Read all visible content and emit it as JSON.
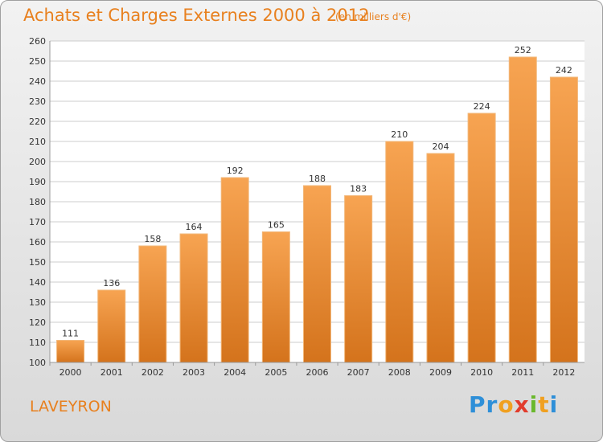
{
  "header": {
    "title": "Achats et Charges Externes 2000 à 2012",
    "subtitle": "(en milliers d'€)"
  },
  "footer": {
    "location": "LAVEYRON",
    "logo_parts": [
      "Pr",
      "o",
      "x",
      "i",
      "t",
      "i"
    ],
    "logo_colors": [
      "#2e8fd8",
      "#f0a020",
      "#e23c2c",
      "#6ab82c",
      "#f0a020",
      "#2e8fd8"
    ]
  },
  "colors": {
    "bar_top": "#f7a452",
    "bar_bottom": "#d4731c",
    "bar_edge": "#f2b779",
    "plot_bg": "#ffffff",
    "grid": "#cccccc",
    "title": "#e8801e"
  },
  "chart_data": {
    "type": "bar",
    "categories": [
      "2000",
      "2001",
      "2002",
      "2003",
      "2004",
      "2005",
      "2006",
      "2007",
      "2008",
      "2009",
      "2010",
      "2011",
      "2012"
    ],
    "values": [
      111,
      136,
      158,
      164,
      192,
      165,
      188,
      183,
      210,
      204,
      224,
      252,
      242
    ],
    "title": "Achats et Charges Externes 2000 à 2012",
    "subtitle": "(en milliers d'€)",
    "xlabel": "",
    "ylabel": "",
    "ylim": [
      100,
      260
    ],
    "yticks": [
      100,
      110,
      120,
      130,
      140,
      150,
      160,
      170,
      180,
      190,
      200,
      210,
      220,
      230,
      240,
      250,
      260
    ],
    "grid": true,
    "legend": "none"
  }
}
